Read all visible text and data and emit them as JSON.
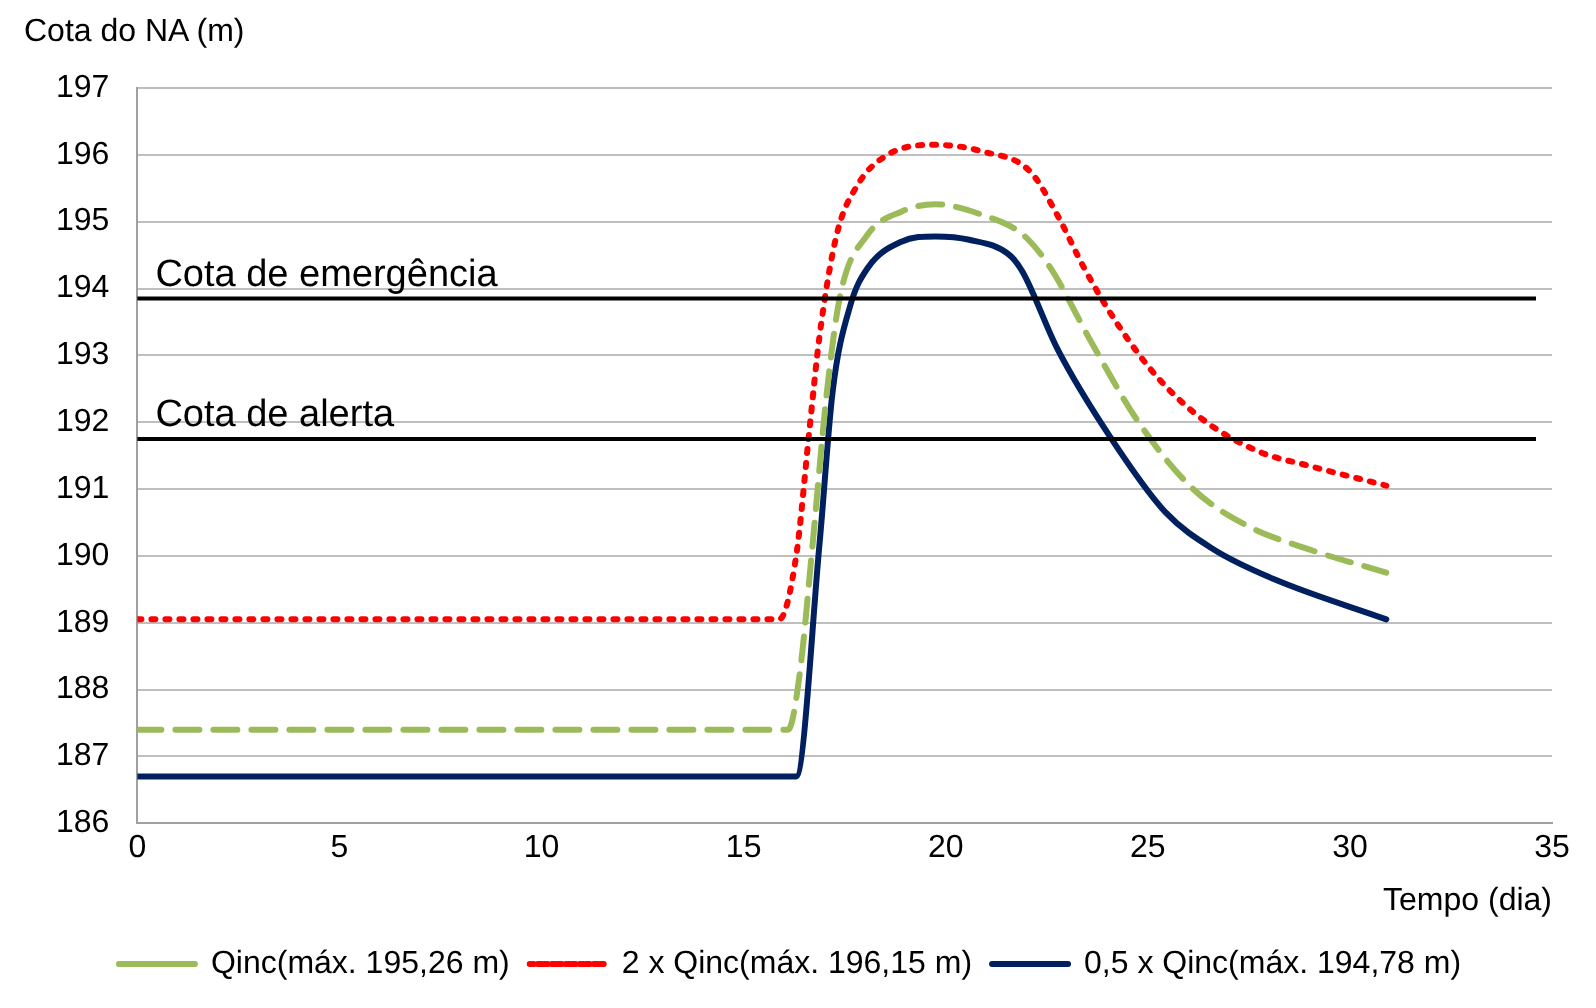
{
  "chart_data": {
    "type": "line",
    "xlabel": "Tempo (dia)",
    "ylabel": "Cota do NA (m)",
    "xlim": [
      0,
      35
    ],
    "xticks": [
      0,
      5,
      10,
      15,
      20,
      25,
      30,
      35
    ],
    "ylim": [
      186,
      197
    ],
    "yticks": [
      186,
      187,
      188,
      189,
      190,
      191,
      192,
      193,
      194,
      195,
      196,
      197
    ],
    "grid": "y",
    "legend": "bottom",
    "marker": "none",
    "ref_lines": [
      {
        "axis": "y",
        "value": 193.85,
        "label": "Cota de emergência",
        "color": "#000000"
      },
      {
        "axis": "y",
        "value": 191.75,
        "label": "Cota de alerta",
        "color": "#000000"
      }
    ],
    "series": [
      {
        "name": "Qinc(máx. 195,26 m)",
        "color": "#9bbb59",
        "line_style": "dashed",
        "x": [
          0,
          16.1,
          16.38,
          16.71,
          17.05,
          17.39,
          18.06,
          18.9,
          19.74,
          20.91,
          21.92,
          22.6,
          23.6,
          24.77,
          26.12,
          27.46,
          28.97,
          30.9
        ],
        "values": [
          187.4,
          187.4,
          188.2,
          190.2,
          192.4,
          193.9,
          194.8,
          195.15,
          195.26,
          195.1,
          194.8,
          194.3,
          193.2,
          192.0,
          191.0,
          190.45,
          190.1,
          189.75
        ]
      },
      {
        "name": "2 x Qinc(máx. 196,15 m)",
        "color": "#ff0000",
        "line_style": "dotted",
        "x": [
          0,
          15.88,
          16.3,
          16.63,
          16.88,
          17.3,
          17.82,
          18.56,
          19.74,
          20.91,
          22.09,
          22.76,
          23.43,
          24.27,
          25.27,
          26.45,
          27.79,
          28.97,
          30.9
        ],
        "values": [
          189.05,
          189.05,
          190.0,
          191.9,
          193.3,
          194.8,
          195.55,
          196.0,
          196.15,
          196.05,
          195.75,
          195.1,
          194.3,
          193.45,
          192.65,
          192.0,
          191.55,
          191.35,
          191.05
        ]
      },
      {
        "name": "0,5 x Qinc(máx. 194,78 m)",
        "color": "#002060",
        "line_style": "solid",
        "x": [
          0,
          16.3,
          16.88,
          17.2,
          17.64,
          18.06,
          18.9,
          19.74,
          20.58,
          21.58,
          21.9,
          22.76,
          24.1,
          25.44,
          26.62,
          28.13,
          30.9
        ],
        "values": [
          186.7,
          186.7,
          190.2,
          192.45,
          193.75,
          194.3,
          194.7,
          194.78,
          194.73,
          194.5,
          194.25,
          193.1,
          191.75,
          190.65,
          190.1,
          189.65,
          189.05
        ]
      }
    ]
  }
}
